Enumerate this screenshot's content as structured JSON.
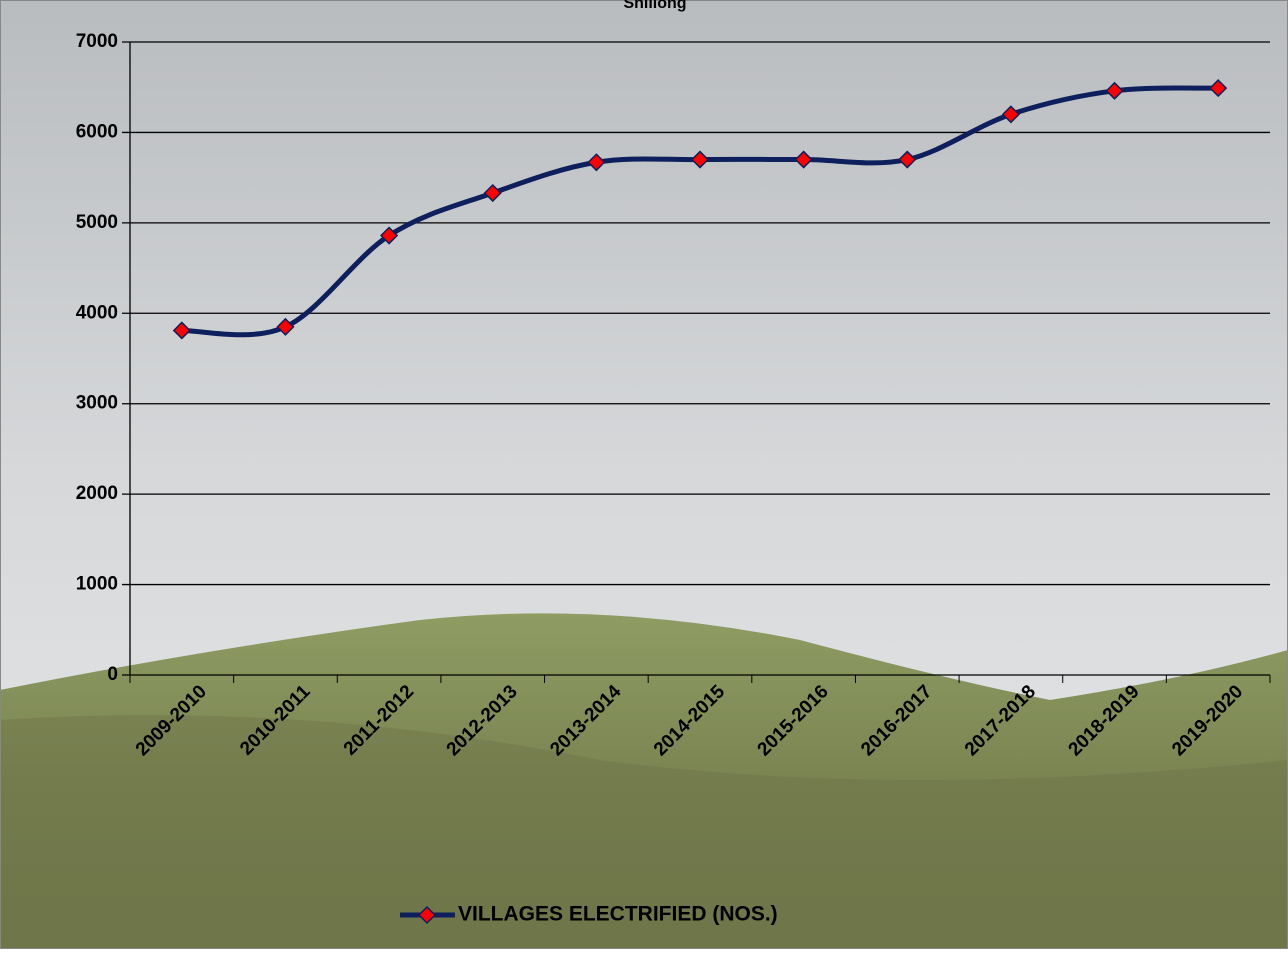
{
  "chart_data": {
    "type": "line",
    "title": "Shillong",
    "categories": [
      "2009-2010",
      "2010-2011",
      "2011-2012",
      "2012-2013",
      "2013-2014",
      "2014-2015",
      "2015-2016",
      "2016-2017",
      "2017-2018",
      "2018-2019",
      "2019-2020"
    ],
    "series": [
      {
        "name": "VILLAGES ELECTRIFIED (NOS.)",
        "color": "#0d1f5c",
        "marker_color": "#ff0000",
        "values": [
          3810,
          3850,
          4860,
          5330,
          5670,
          5700,
          5700,
          5700,
          6200,
          6460,
          6490
        ]
      }
    ],
    "ylim": [
      0,
      7000
    ],
    "yticks": [
      0,
      1000,
      2000,
      3000,
      4000,
      5000,
      6000,
      7000
    ],
    "grid": true,
    "legend": "bottom"
  }
}
